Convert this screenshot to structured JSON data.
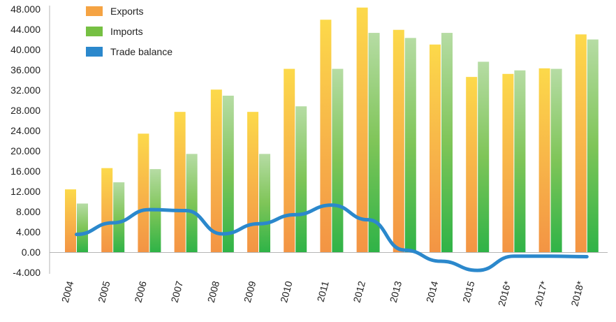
{
  "chart_data": {
    "type": "bar",
    "title": "",
    "xlabel": "",
    "ylabel": "",
    "ylim": [
      -4,
      48
    ],
    "y_ticks": [
      "48.000",
      "44.000",
      "40.000",
      "36.000",
      "32.000",
      "28.000",
      "24.000",
      "20.000",
      "16.000",
      "12.000",
      "8.000",
      "4.000",
      "0.00",
      "-4.000"
    ],
    "y_tick_values": [
      48,
      44,
      40,
      36,
      32,
      28,
      24,
      20,
      16,
      12,
      8,
      4,
      0,
      -4
    ],
    "categories": [
      "2004",
      "2005",
      "2006",
      "2007",
      "2008",
      "2009",
      "2010",
      "2011",
      "2012",
      "2013",
      "2014",
      "2015",
      "2016*",
      "2017*",
      "2018*"
    ],
    "legend_position": "top-left",
    "grid": false,
    "series": [
      {
        "name": "Exports",
        "kind": "bar",
        "color": "#f5a343",
        "values": [
          12.4,
          16.6,
          23.4,
          27.7,
          32.1,
          27.7,
          36.2,
          45.9,
          48.3,
          43.9,
          41.0,
          34.6,
          35.2,
          36.3,
          43.0
        ]
      },
      {
        "name": "Imports",
        "kind": "bar",
        "color": "#76c043",
        "values": [
          9.6,
          13.8,
          16.4,
          19.4,
          30.9,
          19.4,
          28.8,
          36.2,
          43.3,
          42.3,
          43.3,
          37.6,
          35.9,
          36.2,
          42.0
        ]
      },
      {
        "name": "Trade balance",
        "kind": "line",
        "color": "#2b88cc",
        "values": [
          3.5,
          5.8,
          8.4,
          8.2,
          3.6,
          5.6,
          7.4,
          9.3,
          6.4,
          0.4,
          -1.8,
          -3.6,
          -0.8,
          -0.8,
          -0.9
        ]
      }
    ]
  }
}
